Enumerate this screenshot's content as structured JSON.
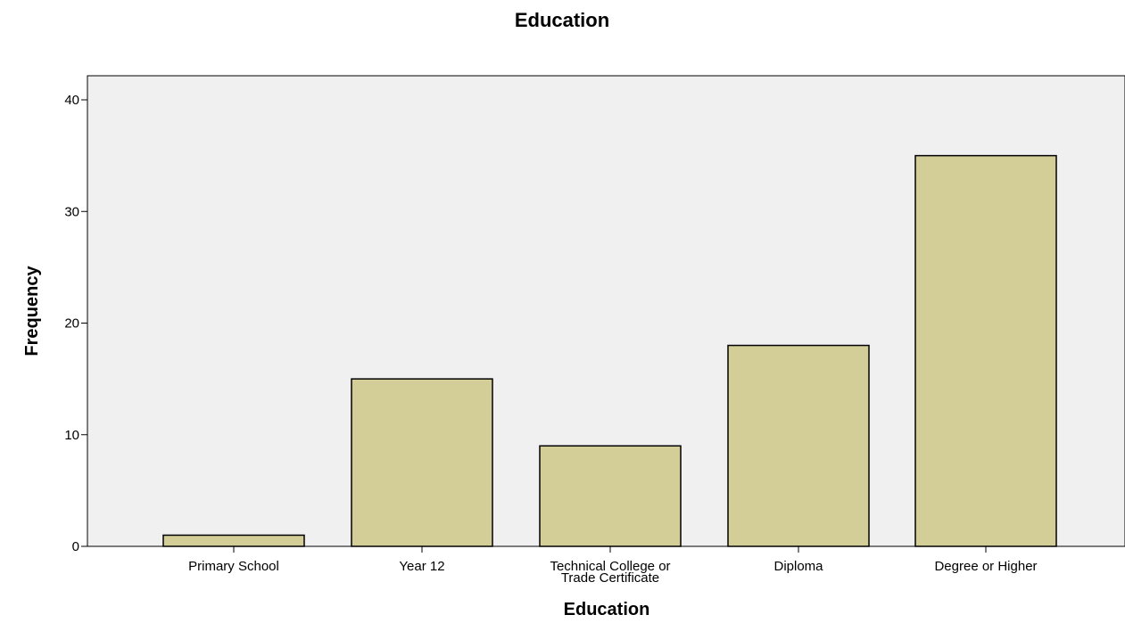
{
  "chart_data": {
    "type": "bar",
    "title": "Education",
    "xlabel": "Education",
    "ylabel": "Frequency",
    "categories": [
      [
        "Primary School"
      ],
      [
        "Year 12"
      ],
      [
        "Technical College or",
        "Trade Certificate"
      ],
      [
        "Diploma"
      ],
      [
        "Degree or Higher"
      ]
    ],
    "values": [
      1,
      15,
      9,
      18,
      35
    ],
    "ylim": [
      0,
      42
    ],
    "yticks": [
      "0",
      "10",
      "20",
      "30",
      "40"
    ],
    "grid": false,
    "legend": "none",
    "colors": {
      "bar_fill": "#d3cd98",
      "bar_stroke": "#000000",
      "plot_background": "#f0f0f0"
    }
  }
}
